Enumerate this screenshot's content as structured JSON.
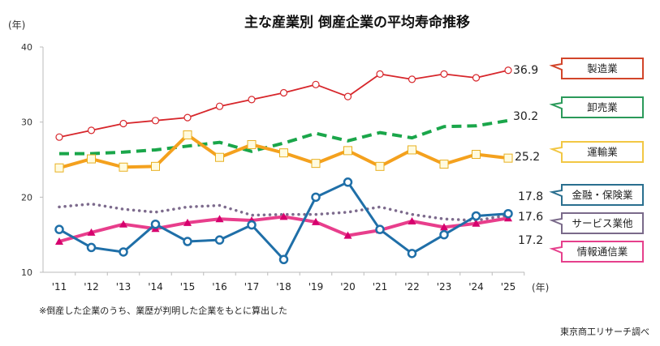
{
  "chart_data": {
    "type": "line",
    "title": "主な産業別  倒産企業の平均寿命推移",
    "ylabel": "(年)",
    "xlabel": "(年)",
    "ylim": [
      10,
      40
    ],
    "yticks": [
      "10",
      "20",
      "30",
      "40"
    ],
    "categories": [
      "'11",
      "'12",
      "'13",
      "'14",
      "'15",
      "'16",
      "'17",
      "'18",
      "'19",
      "'20",
      "'21",
      "'22",
      "'23",
      "'24",
      "'25"
    ],
    "grid": false,
    "legend_placement": "right",
    "series": [
      {
        "name": "製造業",
        "color": "#d7262b",
        "border": "#d2452a",
        "style": "solid-circle",
        "end_label": "36.9",
        "values": [
          28.0,
          28.9,
          29.8,
          30.2,
          30.6,
          32.1,
          33.0,
          33.9,
          35.0,
          33.4,
          36.4,
          35.7,
          36.4,
          35.9,
          36.9
        ]
      },
      {
        "name": "卸売業",
        "color": "#1aa64a",
        "border": "#2b9a5a",
        "style": "dashed",
        "end_label": "30.2",
        "values": [
          25.8,
          25.8,
          26.0,
          26.3,
          26.8,
          27.3,
          26.1,
          27.2,
          28.5,
          27.5,
          28.6,
          27.9,
          29.4,
          29.5,
          30.2
        ]
      },
      {
        "name": "運輸業",
        "color": "#f4a11e",
        "border": "#f2c744",
        "style": "solid-square",
        "end_label": "25.2",
        "values": [
          23.9,
          25.1,
          24.0,
          24.1,
          28.3,
          25.3,
          27.0,
          25.9,
          24.5,
          26.2,
          24.1,
          26.3,
          24.4,
          25.7,
          25.2
        ]
      },
      {
        "name": "金融・保険業",
        "color": "#1f6fa8",
        "border": "#2a6f8f",
        "style": "solid-ring",
        "end_label": "17.8",
        "values": [
          15.7,
          13.3,
          12.7,
          16.4,
          14.1,
          14.3,
          16.3,
          11.7,
          20.0,
          22.0,
          15.7,
          12.5,
          15.0,
          17.5,
          17.8
        ]
      },
      {
        "name": "サービス業他",
        "color": "#7d6b8d",
        "border": "#7a6a8a",
        "style": "dotted",
        "end_label": "17.6",
        "values": [
          18.7,
          19.1,
          18.4,
          18.0,
          18.7,
          18.9,
          17.6,
          17.7,
          17.7,
          18.0,
          18.7,
          17.7,
          17.1,
          16.9,
          17.6
        ]
      },
      {
        "name": "情報通信業",
        "color": "#e83e8c",
        "border": "#e6408c",
        "style": "solid-triangle",
        "end_label": "17.2",
        "values": [
          14.1,
          15.3,
          16.4,
          15.8,
          16.6,
          17.1,
          16.9,
          17.4,
          16.7,
          14.9,
          15.6,
          16.8,
          16.0,
          16.5,
          17.2
        ]
      }
    ]
  },
  "footnote": "※倒産した企業のうち、業歴が判明した企業をもとに算出した",
  "source": "東京商工リサーチ調べ"
}
